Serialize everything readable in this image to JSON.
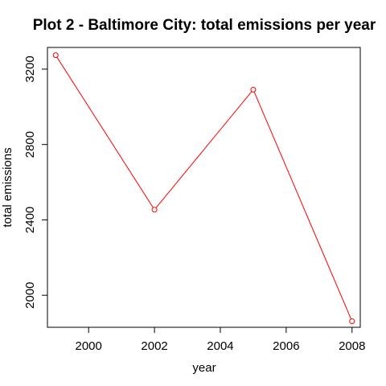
{
  "chart_data": {
    "type": "line",
    "title": "Plot 2 - Baltimore City: total emissions per year",
    "xlabel": "year",
    "ylabel": "total emissions",
    "xlim": [
      1998.75,
      2008.25
    ],
    "ylim": [
      1830,
      3315
    ],
    "xticks": [
      2000,
      2002,
      2004,
      2006,
      2008
    ],
    "yticks": [
      2000,
      2400,
      2800,
      3200
    ],
    "grid": false,
    "series": [
      {
        "color": "#ff0000",
        "marker": "open-circle",
        "points": [
          {
            "x": 1999,
            "y": 3274
          },
          {
            "x": 2002,
            "y": 2454
          },
          {
            "x": 2005,
            "y": 3091
          },
          {
            "x": 2008,
            "y": 1862
          }
        ]
      }
    ]
  }
}
